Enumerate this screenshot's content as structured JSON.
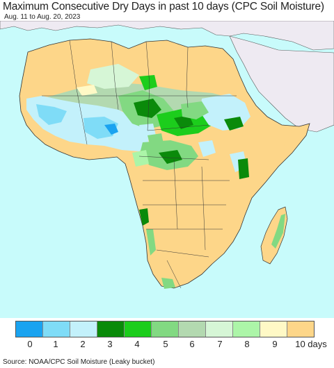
{
  "title": "Maximum Consecutive Dry Days in past 10 days (CPC Soil Moisture)",
  "subtitle": "Aug. 11 to Aug. 20, 2023",
  "source": "Source: NOAA/CPC Soil Moisture (Leaky bucket)",
  "colors": {
    "ocean": "#c8fbfb",
    "land_other": "#eeeaf2",
    "border": "#333333"
  },
  "legend": {
    "items": [
      {
        "label": "0",
        "color": "#1aa3f0"
      },
      {
        "label": "1",
        "color": "#7fdcf7"
      },
      {
        "label": "2",
        "color": "#c3f1fb"
      },
      {
        "label": "3",
        "color": "#0a8a0a"
      },
      {
        "label": "4",
        "color": "#1ccd1c"
      },
      {
        "label": "5",
        "color": "#82d982"
      },
      {
        "label": "6",
        "color": "#b3d9b0"
      },
      {
        "label": "7",
        "color": "#d6f6d6"
      },
      {
        "label": "8",
        "color": "#acf5a8"
      },
      {
        "label": "9",
        "color": "#fff9c6"
      },
      {
        "label": "10 days",
        "color": "#fdd689"
      }
    ]
  }
}
